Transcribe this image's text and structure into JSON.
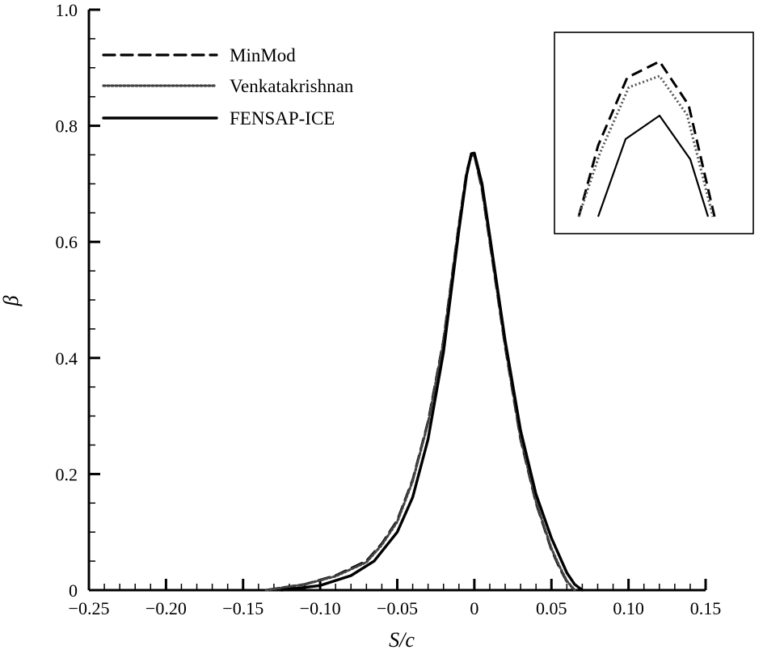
{
  "chart_data": {
    "type": "line",
    "xlabel": "S/c",
    "ylabel": "β",
    "xlim": [
      -0.25,
      0.15
    ],
    "ylim": [
      0,
      1.0
    ],
    "x_ticks": [
      "−0.25",
      "−0.20",
      "−0.15",
      "−0.10",
      "−0.05",
      "0",
      "0.05",
      "0.10",
      "0.15"
    ],
    "y_ticks": [
      "0",
      "0.2",
      "0.4",
      "0.6",
      "0.8",
      "1.0"
    ],
    "legend_position": "top-left",
    "series": [
      {
        "name": "MinMod",
        "style": "dashed",
        "x": [
          -0.135,
          -0.11,
          -0.09,
          -0.07,
          -0.06,
          -0.05,
          -0.04,
          -0.03,
          -0.02,
          -0.01,
          -0.005,
          -0.002,
          0.0,
          0.005,
          0.01,
          0.02,
          0.03,
          0.04,
          0.05,
          0.055,
          0.06,
          0.065
        ],
        "y": [
          0.0,
          0.01,
          0.025,
          0.05,
          0.08,
          0.12,
          0.19,
          0.29,
          0.43,
          0.63,
          0.72,
          0.75,
          0.75,
          0.69,
          0.6,
          0.42,
          0.26,
          0.15,
          0.07,
          0.04,
          0.015,
          0.0
        ]
      },
      {
        "name": "Venkatakrishnan",
        "style": "dotted",
        "x": [
          -0.135,
          -0.11,
          -0.09,
          -0.07,
          -0.06,
          -0.05,
          -0.04,
          -0.03,
          -0.02,
          -0.01,
          -0.005,
          -0.002,
          0.0,
          0.005,
          0.01,
          0.02,
          0.03,
          0.04,
          0.05,
          0.055,
          0.06,
          0.065
        ],
        "y": [
          0.0,
          0.01,
          0.024,
          0.048,
          0.078,
          0.118,
          0.188,
          0.288,
          0.428,
          0.628,
          0.718,
          0.748,
          0.749,
          0.692,
          0.602,
          0.422,
          0.262,
          0.152,
          0.072,
          0.042,
          0.016,
          0.0
        ]
      },
      {
        "name": "FENSAP-ICE",
        "style": "solid",
        "x": [
          -0.125,
          -0.1,
          -0.08,
          -0.065,
          -0.05,
          -0.04,
          -0.03,
          -0.02,
          -0.01,
          -0.005,
          -0.002,
          0.0,
          0.005,
          0.01,
          0.02,
          0.03,
          0.04,
          0.05,
          0.06,
          0.065,
          0.07
        ],
        "y": [
          0.0,
          0.008,
          0.025,
          0.05,
          0.1,
          0.16,
          0.26,
          0.41,
          0.62,
          0.715,
          0.752,
          0.753,
          0.7,
          0.61,
          0.43,
          0.275,
          0.165,
          0.09,
          0.03,
          0.01,
          0.0
        ]
      }
    ]
  }
}
